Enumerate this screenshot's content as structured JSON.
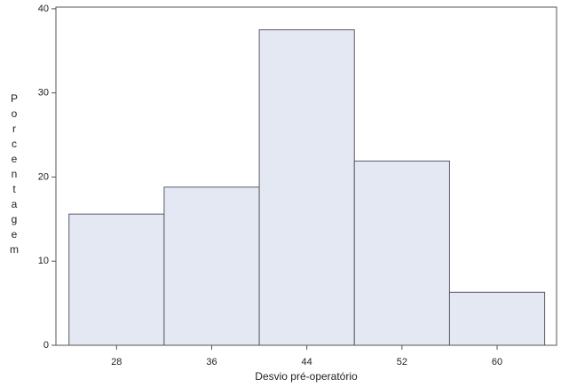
{
  "chart_data": {
    "type": "histogram",
    "x_label": "Desvio pré-operatório",
    "y_label": "Porcentagem",
    "bins": [
      24,
      32,
      40,
      48,
      56,
      64
    ],
    "values": [
      15.6,
      18.8,
      37.5,
      21.9,
      6.3
    ],
    "color": "#e4e8f2",
    "edge_color": "#5a5a6a",
    "xlim": [
      22.9,
      65.0
    ],
    "xticks": [
      28,
      36,
      44,
      52,
      60
    ],
    "ylim": [
      0,
      40.2
    ],
    "yticks": [
      0,
      10,
      20,
      30,
      40
    ]
  }
}
